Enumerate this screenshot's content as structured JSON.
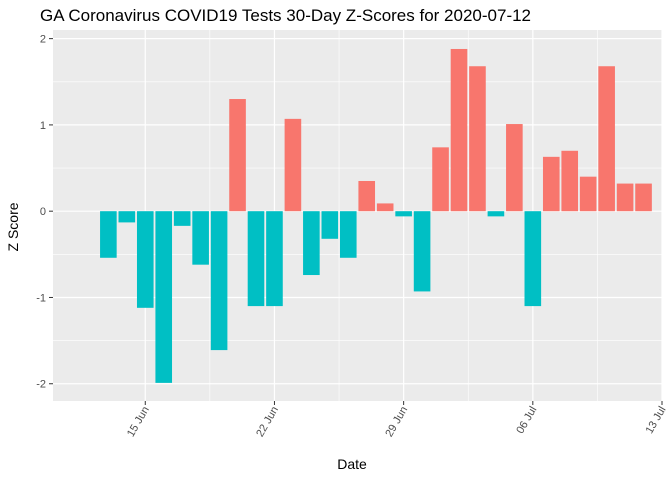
{
  "chart_data": {
    "type": "bar",
    "title": "GA Coronavirus COVID19 Tests 30-Day Z-Scores for 2020-07-12",
    "xlabel": "Date",
    "ylabel": "Z Score",
    "x_ticks": [
      {
        "date": "2020-06-15",
        "label": "15 Jun"
      },
      {
        "date": "2020-06-22",
        "label": "22 Jun"
      },
      {
        "date": "2020-06-29",
        "label": "29 Jun"
      },
      {
        "date": "2020-07-06",
        "label": "06 Jul"
      },
      {
        "date": "2020-07-13",
        "label": "13 Jul"
      }
    ],
    "y_ticks": [
      -2,
      -1,
      0,
      1,
      2
    ],
    "xlim": [
      "2020-06-10",
      "2020-07-13"
    ],
    "ylim": [
      -2.2,
      2.1
    ],
    "grid": true,
    "legend": "none",
    "colors": {
      "positive": "#F8766D",
      "negative": "#00BFC4",
      "panel": "#EBEBEB",
      "grid": "#FFFFFF"
    },
    "series": [
      {
        "dates": [
          "2020-06-13",
          "2020-06-14",
          "2020-06-15",
          "2020-06-16",
          "2020-06-17",
          "2020-06-18",
          "2020-06-19",
          "2020-06-20",
          "2020-06-21",
          "2020-06-22",
          "2020-06-23",
          "2020-06-24",
          "2020-06-25",
          "2020-06-26",
          "2020-06-27",
          "2020-06-28",
          "2020-06-29",
          "2020-06-30",
          "2020-07-01",
          "2020-07-02",
          "2020-07-03",
          "2020-07-04",
          "2020-07-05",
          "2020-07-06",
          "2020-07-07",
          "2020-07-08",
          "2020-07-09",
          "2020-07-10",
          "2020-07-11",
          "2020-07-12"
        ],
        "values": [
          -0.54,
          -0.13,
          -1.12,
          -1.99,
          -0.17,
          -0.62,
          -1.61,
          1.3,
          -1.1,
          -1.1,
          1.07,
          -0.74,
          -0.32,
          -0.54,
          0.35,
          0.09,
          -0.06,
          -0.93,
          0.74,
          1.88,
          1.68,
          -0.06,
          1.01,
          -1.1,
          0.63,
          0.7,
          0.4,
          1.68,
          0.32,
          0.32
        ]
      }
    ]
  }
}
